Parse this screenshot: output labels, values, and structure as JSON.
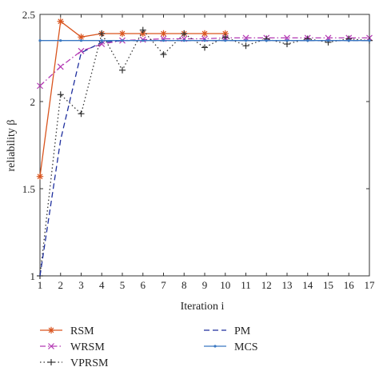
{
  "chart_data": {
    "type": "line",
    "title": "",
    "xlabel": "Iteration i",
    "ylabel": "reliability β",
    "xlim": [
      1,
      17
    ],
    "ylim": [
      1,
      2.5
    ],
    "xticks": [
      "1",
      "2",
      "3",
      "4",
      "5",
      "6",
      "7",
      "8",
      "9",
      "10",
      "11",
      "12",
      "13",
      "14",
      "15",
      "16",
      "17"
    ],
    "yticks": [
      "1",
      "1.5",
      "2",
      "2.5"
    ],
    "grid": false,
    "legend_position": "bottom",
    "series": [
      {
        "name": "RSM",
        "color": "#d9541e",
        "marker": "asterisk",
        "dash": "solid",
        "x": [
          1,
          2,
          3,
          4,
          5,
          6,
          7,
          8,
          9,
          10
        ],
        "y": [
          1.57,
          2.46,
          2.37,
          2.39,
          2.39,
          2.39,
          2.39,
          2.39,
          2.39,
          2.39
        ]
      },
      {
        "name": "WRSM",
        "color": "#b43ab4",
        "marker": "x",
        "dash": "dashdot",
        "x": [
          1,
          2,
          3,
          4,
          5,
          6,
          7,
          8,
          9,
          10,
          11,
          12,
          13,
          14,
          15,
          16,
          17
        ],
        "y": [
          2.09,
          2.2,
          2.29,
          2.33,
          2.35,
          2.355,
          2.36,
          2.36,
          2.36,
          2.365,
          2.365,
          2.365,
          2.365,
          2.365,
          2.365,
          2.365,
          2.365
        ]
      },
      {
        "name": "VPRSM",
        "color": "#333333",
        "marker": "plus",
        "dash": "dotted",
        "x": [
          1,
          2,
          3,
          4,
          5,
          6,
          7,
          8,
          9,
          10,
          11,
          12,
          13,
          14,
          15,
          16,
          17
        ],
        "y": [
          1.0,
          2.04,
          1.93,
          2.39,
          2.18,
          2.41,
          2.27,
          2.39,
          2.31,
          2.37,
          2.32,
          2.36,
          2.33,
          2.36,
          2.34,
          2.36,
          2.35
        ]
      },
      {
        "name": "PM",
        "color": "#1f2f9e",
        "marker": "none",
        "dash": "dashed",
        "x": [
          1,
          2,
          3,
          4,
          5,
          6,
          7,
          8,
          9,
          10,
          11,
          12,
          13,
          14,
          15,
          16,
          17
        ],
        "y": [
          1.0,
          1.78,
          2.28,
          2.34,
          2.35,
          2.35,
          2.35,
          2.35,
          2.35,
          2.35,
          2.35,
          2.35,
          2.35,
          2.35,
          2.35,
          2.35,
          2.35
        ]
      },
      {
        "name": "MCS",
        "color": "#3a78c2",
        "marker": "dot",
        "dash": "solid",
        "x": [
          1,
          2,
          3,
          4,
          5,
          6,
          7,
          8,
          9,
          10,
          11,
          12,
          13,
          14,
          15,
          16,
          17
        ],
        "y": [
          2.35,
          2.35,
          2.35,
          2.35,
          2.35,
          2.35,
          2.35,
          2.35,
          2.35,
          2.35,
          2.35,
          2.35,
          2.35,
          2.35,
          2.35,
          2.35,
          2.35
        ]
      }
    ]
  }
}
